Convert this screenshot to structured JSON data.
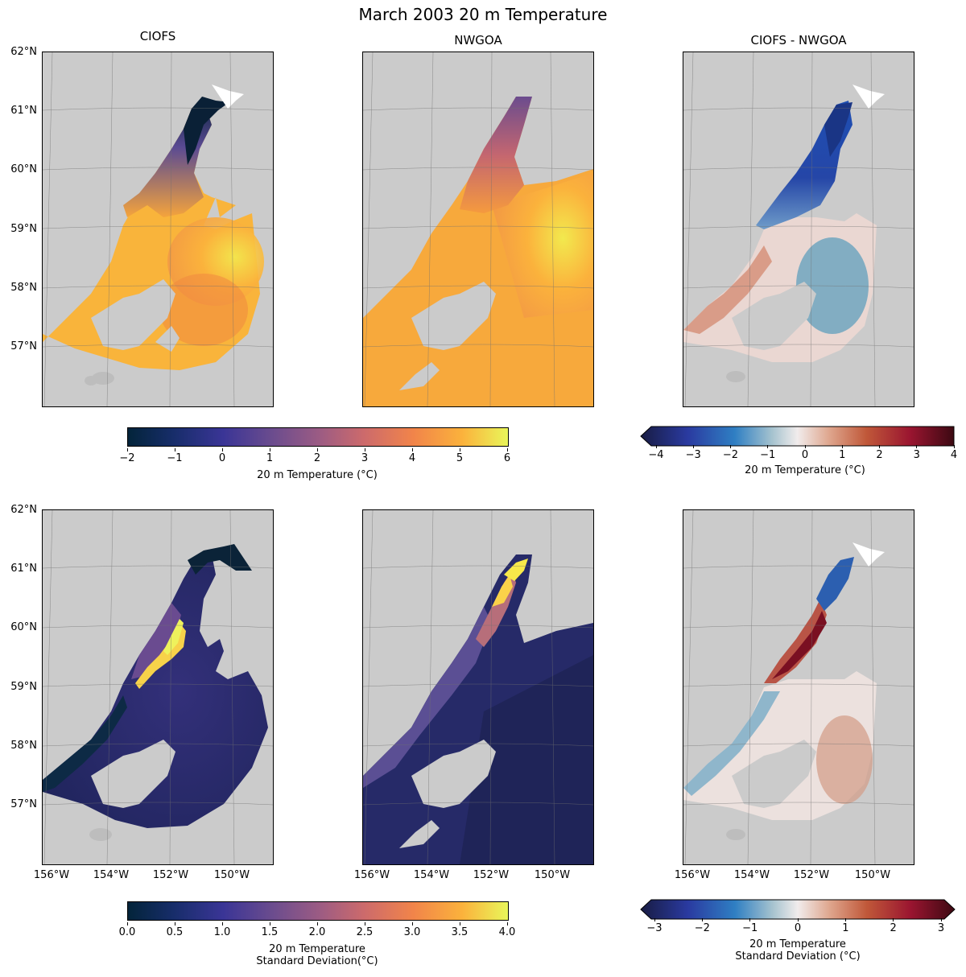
{
  "suptitle": "March 2003 20 m Temperature",
  "panels": {
    "ciofs": "CIOFS",
    "nwgoa": "NWGOA",
    "diff": "CIOFS - NWGOA"
  },
  "lat_ticks": [
    "62°N",
    "61°N",
    "60°N",
    "59°N",
    "58°N",
    "57°N"
  ],
  "lon_ticks": [
    "156°W",
    "154°W",
    "152°W",
    "150°W"
  ],
  "colorbars": {
    "temp": {
      "label": "20 m Temperature (°C)",
      "ticks": [
        "−2",
        "−1",
        "0",
        "1",
        "2",
        "3",
        "4",
        "5",
        "6"
      ],
      "range": [
        -2,
        6
      ]
    },
    "temp_diff": {
      "label": "20 m Temperature (°C)",
      "ticks": [
        "−4",
        "−3",
        "−2",
        "−1",
        "0",
        "1",
        "2",
        "3",
        "4"
      ],
      "range": [
        -4,
        4
      ]
    },
    "std": {
      "label_line1": "20 m Temperature",
      "label_line2": "Standard Deviation(°C)",
      "ticks": [
        "0.0",
        "0.5",
        "1.0",
        "1.5",
        "2.0",
        "2.5",
        "3.0",
        "3.5",
        "4.0"
      ],
      "range": [
        0,
        4
      ]
    },
    "std_diff": {
      "label_line1": "20 m Temperature",
      "label_line2": "Standard Deviation (°C)",
      "ticks": [
        "−3",
        "−2",
        "−1",
        "0",
        "1",
        "2",
        "3"
      ],
      "range": [
        -3,
        3
      ]
    }
  },
  "colors": {
    "land": "#cbcbcb",
    "thermal_low": "#0b2338",
    "thermal_mid": "#7c4f8c",
    "thermal_high": "#eaf24a",
    "balance_low": "#1a1a4a",
    "balance_mid": "#f1ecec",
    "balance_high": "#3d0011"
  }
}
